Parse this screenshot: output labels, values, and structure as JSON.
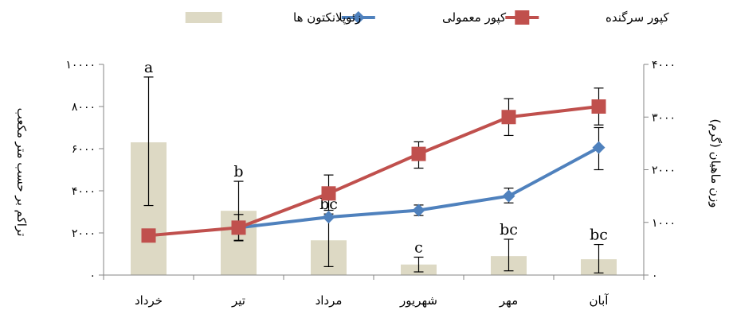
{
  "chart_data": {
    "type": "bar+line",
    "categories": [
      "خرداد",
      "تیر",
      "مرداد",
      "شهریور",
      "مهر",
      "آبان"
    ],
    "bar_series": {
      "name": "زئوپلانکتون ها",
      "values": [
        6300,
        3050,
        1650,
        500,
        900,
        750
      ],
      "error_low": [
        3300,
        1650,
        400,
        150,
        200,
        100
      ],
      "error_high": [
        9400,
        4450,
        2900,
        850,
        1700,
        1450
      ],
      "labels": [
        "a",
        "b",
        "bc",
        "c",
        "bc",
        "bc"
      ],
      "color": "#ddd9c4"
    },
    "line_series": [
      {
        "name": "کپور معمولی",
        "values": [
          null,
          900,
          1100,
          1230,
          1500,
          2420
        ],
        "error_low": [
          null,
          null,
          null,
          1130,
          1370,
          2000
        ],
        "error_high": [
          null,
          null,
          null,
          1330,
          1650,
          2800
        ],
        "color": "#4f81bd",
        "marker": "diamond"
      },
      {
        "name": "کپور سرگنده",
        "values": [
          750,
          900,
          1550,
          2300,
          3000,
          3200
        ],
        "error_low": [
          null,
          650,
          1230,
          2030,
          2650,
          2850
        ],
        "error_high": [
          null,
          1150,
          1900,
          2530,
          3350,
          3550
        ],
        "color": "#c0504d",
        "marker": "square"
      }
    ],
    "y_left": {
      "label": "تراکم بر حسب متر مکعب",
      "ylim": [
        0,
        10000
      ],
      "ticks": [
        0,
        2000,
        4000,
        6000,
        8000,
        10000
      ],
      "tick_labels": [
        "۰",
        "۲۰۰۰",
        "۴۰۰۰",
        "۶۰۰۰",
        "۸۰۰۰",
        "۱۰۰۰۰"
      ]
    },
    "y_right": {
      "label": "وزن ماهیان (گرم)",
      "ylim": [
        0,
        4000
      ],
      "ticks": [
        0,
        1000,
        2000,
        3000,
        4000
      ],
      "tick_labels": [
        "۰",
        "۱۰۰۰",
        "۲۰۰۰",
        "۳۰۰۰",
        "۴۰۰۰"
      ]
    },
    "legend_position": "top",
    "grid": false
  }
}
